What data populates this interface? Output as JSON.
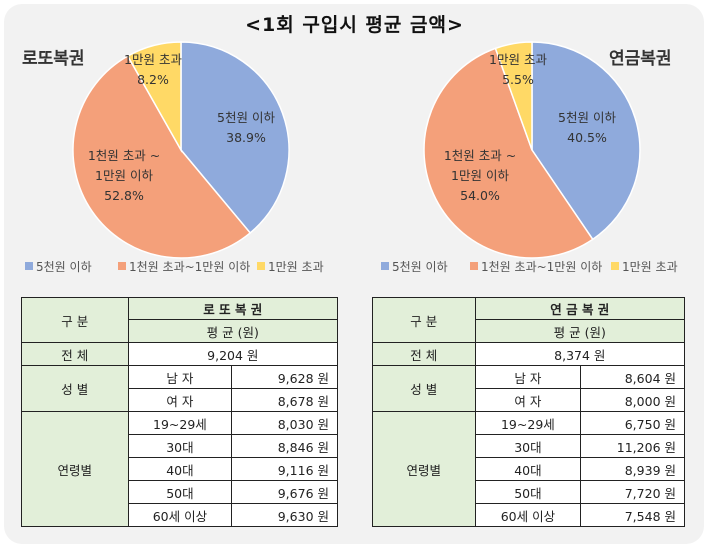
{
  "title": "<1회 구입시 평균 금액>",
  "chart_data": [
    {
      "type": "pie",
      "title": "로또복권",
      "categories": [
        "5천원 이하",
        "1천원 초과~1만원 이하",
        "1만원 초과"
      ],
      "values": [
        38.9,
        52.8,
        8.2
      ],
      "slice_labels": [
        {
          "lines": [
            "5천원 이하",
            "38.9%"
          ]
        },
        {
          "lines": [
            "1천원 초과 ~",
            "1만원 이하",
            "52.8%"
          ]
        },
        {
          "lines": [
            "1만원 초과",
            "8.2%"
          ]
        }
      ],
      "colors": [
        "#8faadc",
        "#f4a07a",
        "#ffd966"
      ],
      "legend": [
        {
          "label": "5천원 이하",
          "color": "#8faadc"
        },
        {
          "label": "1천원 초과~1만원 이하",
          "color": "#f4a07a"
        },
        {
          "label": "1만원 초과",
          "color": "#ffd966"
        }
      ]
    },
    {
      "type": "pie",
      "title": "연금복권",
      "categories": [
        "5천원 이하",
        "1천원 초과~1만원 이하",
        "1만원 초과"
      ],
      "values": [
        40.5,
        54.0,
        5.5
      ],
      "slice_labels": [
        {
          "lines": [
            "5천원 이하",
            "40.5%"
          ]
        },
        {
          "lines": [
            "1천원 초과 ~",
            "1만원 이하",
            "54.0%"
          ]
        },
        {
          "lines": [
            "1만원 초과",
            "5.5%"
          ]
        }
      ],
      "colors": [
        "#8faadc",
        "#f4a07a",
        "#ffd966"
      ],
      "legend": [
        {
          "label": "5천원 이하",
          "color": "#8faadc"
        },
        {
          "label": "1천원 초과~1만원 이하",
          "color": "#f4a07a"
        },
        {
          "label": "1만원 초과",
          "color": "#ffd966"
        }
      ]
    }
  ],
  "tables": [
    {
      "col_header": "구 분",
      "product": "로 또 복 권",
      "avg_label": "평 균 (원)",
      "total_label": "전 체",
      "total_value": "9,204 원",
      "gender_label": "성 별",
      "gender_rows": [
        {
          "label": "남 자",
          "value": "9,628 원"
        },
        {
          "label": "여 자",
          "value": "8,678 원"
        }
      ],
      "age_label": "연령별",
      "age_rows": [
        {
          "label": "19~29세",
          "value": "8,030 원"
        },
        {
          "label": "30대",
          "value": "8,846 원"
        },
        {
          "label": "40대",
          "value": "9,116 원"
        },
        {
          "label": "50대",
          "value": "9,676 원"
        },
        {
          "label": "60세 이상",
          "value": "9,630 원"
        }
      ]
    },
    {
      "col_header": "구 분",
      "product": "연 금 복 권",
      "avg_label": "평 균 (원)",
      "total_label": "전 체",
      "total_value": "8,374 원",
      "gender_label": "성 별",
      "gender_rows": [
        {
          "label": "남 자",
          "value": "8,604 원"
        },
        {
          "label": "여 자",
          "value": "8,000 원"
        }
      ],
      "age_label": "연령별",
      "age_rows": [
        {
          "label": "19~29세",
          "value": "6,750 원"
        },
        {
          "label": "30대",
          "value": "11,206 원"
        },
        {
          "label": "40대",
          "value": "8,939 원"
        },
        {
          "label": "50대",
          "value": "7,720 원"
        },
        {
          "label": "60세 이상",
          "value": "7,548 원"
        }
      ]
    }
  ]
}
